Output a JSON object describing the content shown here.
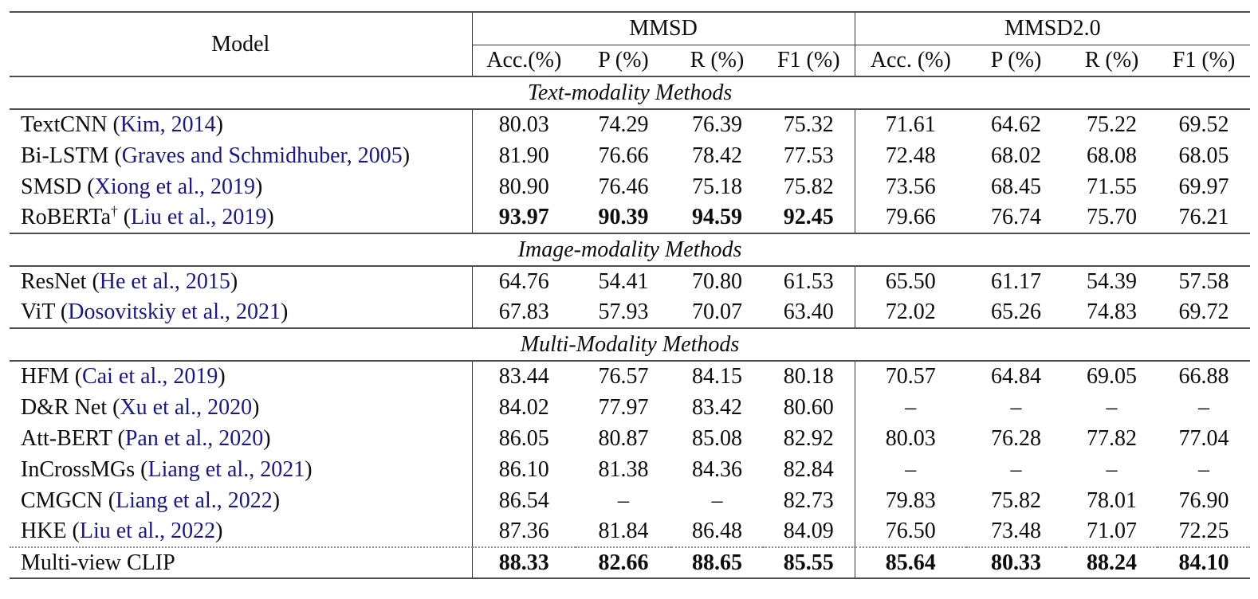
{
  "colors": {
    "citation_blue": "#18188c",
    "rule_gray": "#4d4d4d",
    "text_ink": "#0d0d0d"
  },
  "punct": {
    "open": " (",
    "close": ")"
  },
  "header": {
    "model": "Model",
    "groups": [
      {
        "label": "MMSD",
        "metrics": [
          "Acc.(%)",
          "P (%)",
          "R (%)",
          "F1 (%)"
        ]
      },
      {
        "label": "MMSD2.0",
        "metrics": [
          "Acc. (%)",
          "P (%)",
          "R (%)",
          "F1 (%)"
        ]
      }
    ]
  },
  "sections": [
    {
      "title": "Text-modality Methods",
      "rows": [
        {
          "model": "TextCNN",
          "citation": "Kim, 2014",
          "mmsd": [
            "80.03",
            "74.29",
            "76.39",
            "75.32"
          ],
          "mmsd2": [
            "71.61",
            "64.62",
            "75.22",
            "69.52"
          ]
        },
        {
          "model": "Bi-LSTM",
          "citation": "Graves and Schmidhuber, 2005",
          "mmsd": [
            "81.90",
            "76.66",
            "78.42",
            "77.53"
          ],
          "mmsd2": [
            "72.48",
            "68.02",
            "68.08",
            "68.05"
          ]
        },
        {
          "model": "SMSD",
          "citation": "Xiong et al., 2019",
          "mmsd": [
            "80.90",
            "76.46",
            "75.18",
            "75.82"
          ],
          "mmsd2": [
            "73.56",
            "68.45",
            "71.55",
            "69.97"
          ]
        },
        {
          "model": "RoBERTa",
          "dagger": "†",
          "citation": "Liu et al., 2019",
          "bold_mmsd": true,
          "mmsd": [
            "93.97",
            "90.39",
            "94.59",
            "92.45"
          ],
          "mmsd2": [
            "79.66",
            "76.74",
            "75.70",
            "76.21"
          ]
        }
      ]
    },
    {
      "title": "Image-modality Methods",
      "rows": [
        {
          "model": "ResNet",
          "citation": "He et al., 2015",
          "mmsd": [
            "64.76",
            "54.41",
            "70.80",
            "61.53"
          ],
          "mmsd2": [
            "65.50",
            "61.17",
            "54.39",
            "57.58"
          ]
        },
        {
          "model": "ViT",
          "citation": "Dosovitskiy et al., 2021",
          "mmsd": [
            "67.83",
            "57.93",
            "70.07",
            "63.40"
          ],
          "mmsd2": [
            "72.02",
            "65.26",
            "74.83",
            "69.72"
          ]
        }
      ]
    },
    {
      "title": "Multi-Modality Methods",
      "rows": [
        {
          "model": "HFM",
          "citation": "Cai et al., 2019",
          "mmsd": [
            "83.44",
            "76.57",
            "84.15",
            "80.18"
          ],
          "mmsd2": [
            "70.57",
            "64.84",
            "69.05",
            "66.88"
          ]
        },
        {
          "model": "D&R Net",
          "citation": "Xu et al., 2020",
          "mmsd": [
            "84.02",
            "77.97",
            "83.42",
            "80.60"
          ],
          "mmsd2": [
            "–",
            "–",
            "–",
            "–"
          ]
        },
        {
          "model": "Att-BERT",
          "citation": "Pan et al., 2020",
          "mmsd": [
            "86.05",
            "80.87",
            "85.08",
            "82.92"
          ],
          "mmsd2": [
            "80.03",
            "76.28",
            "77.82",
            "77.04"
          ]
        },
        {
          "model": "InCrossMGs",
          "citation": "Liang et al., 2021",
          "mmsd": [
            "86.10",
            "81.38",
            "84.36",
            "82.84"
          ],
          "mmsd2": [
            "–",
            "–",
            "–",
            "–"
          ]
        },
        {
          "model": "CMGCN",
          "citation": "Liang et al., 2022",
          "mmsd": [
            "86.54",
            "–",
            "–",
            "82.73"
          ],
          "mmsd2": [
            "79.83",
            "75.82",
            "78.01",
            "76.90"
          ]
        },
        {
          "model": "HKE",
          "citation": "Liu et al., 2022",
          "mmsd": [
            "87.36",
            "81.84",
            "86.48",
            "84.09"
          ],
          "mmsd2": [
            "76.50",
            "73.48",
            "71.07",
            "72.25"
          ]
        }
      ]
    },
    {
      "divider": "dotted",
      "rows": [
        {
          "model": "Multi-view CLIP",
          "bold_mmsd": true,
          "bold_mmsd2": true,
          "mmsd": [
            "88.33",
            "82.66",
            "88.65",
            "85.55"
          ],
          "mmsd2": [
            "85.64",
            "80.33",
            "88.24",
            "84.10"
          ]
        }
      ]
    }
  ]
}
